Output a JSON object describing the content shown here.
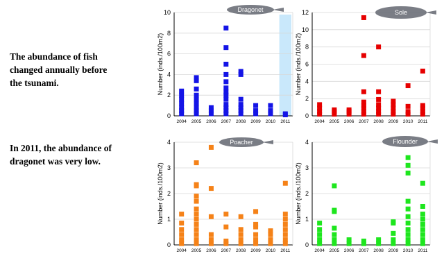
{
  "left_text": {
    "paragraph1": "The abundance of fish\nchanged annually before\nthe tsunami.",
    "paragraph2": "In 2011, the abundance of\ndragonet was very low."
  },
  "chart_data": [
    {
      "type": "scatter",
      "title": "Dragonet",
      "ylabel": "Number (inds./100m2)",
      "ylim": [
        0,
        10
      ],
      "yticks": [
        0,
        2,
        4,
        6,
        8,
        10
      ],
      "categories": [
        "2004",
        "2005",
        "2006",
        "2007",
        "2008",
        "2009",
        "2010",
        "2011"
      ],
      "color": "#1414e6",
      "highlight_category": "2011",
      "highlight_color": "#c9e8fb",
      "points": [
        [
          0,
          0.2
        ],
        [
          0,
          0.5
        ],
        [
          0,
          0.8
        ],
        [
          0,
          1.2
        ],
        [
          0,
          1.6
        ],
        [
          0,
          2.0
        ],
        [
          0,
          2.4
        ],
        [
          1,
          0.2
        ],
        [
          1,
          0.5
        ],
        [
          1,
          0.8
        ],
        [
          1,
          1.2
        ],
        [
          1,
          1.6
        ],
        [
          1,
          2.0
        ],
        [
          1,
          2.6
        ],
        [
          1,
          3.4
        ],
        [
          1,
          3.7
        ],
        [
          2,
          0.2
        ],
        [
          2,
          0.5
        ],
        [
          2,
          0.8
        ],
        [
          3,
          0.2
        ],
        [
          3,
          0.5
        ],
        [
          3,
          0.8
        ],
        [
          3,
          1.1
        ],
        [
          3,
          1.6
        ],
        [
          3,
          2.0
        ],
        [
          3,
          2.3
        ],
        [
          3,
          2.7
        ],
        [
          3,
          3.3
        ],
        [
          3,
          4.0
        ],
        [
          3,
          5.0
        ],
        [
          3,
          6.6
        ],
        [
          3,
          8.5
        ],
        [
          4,
          0.2
        ],
        [
          4,
          0.5
        ],
        [
          4,
          0.8
        ],
        [
          4,
          1.1
        ],
        [
          4,
          1.6
        ],
        [
          4,
          4.0
        ],
        [
          4,
          4.3
        ],
        [
          5,
          0.2
        ],
        [
          5,
          0.5
        ],
        [
          5,
          1.0
        ],
        [
          6,
          0.2
        ],
        [
          6,
          0.5
        ],
        [
          6,
          1.0
        ],
        [
          7,
          0.1
        ],
        [
          7,
          0.2
        ]
      ]
    },
    {
      "type": "scatter",
      "title": "Sole",
      "ylabel": "Number (inds./100m2)",
      "ylim": [
        0,
        12
      ],
      "yticks": [
        0,
        2,
        4,
        6,
        8,
        10,
        12
      ],
      "categories": [
        "2004",
        "2005",
        "2006",
        "2007",
        "2008",
        "2009",
        "2010",
        "2011"
      ],
      "color": "#e60000",
      "points": [
        [
          0,
          0.2
        ],
        [
          0,
          0.5
        ],
        [
          0,
          0.9
        ],
        [
          0,
          1.3
        ],
        [
          1,
          0.2
        ],
        [
          1,
          0.5
        ],
        [
          1,
          0.7
        ],
        [
          2,
          0.2
        ],
        [
          2,
          0.5
        ],
        [
          2,
          0.7
        ],
        [
          3,
          0.2
        ],
        [
          3,
          0.5
        ],
        [
          3,
          0.9
        ],
        [
          3,
          1.2
        ],
        [
          3,
          1.6
        ],
        [
          3,
          2.8
        ],
        [
          3,
          7.0
        ],
        [
          3,
          11.4
        ],
        [
          4,
          0.2
        ],
        [
          4,
          0.5
        ],
        [
          4,
          0.9
        ],
        [
          4,
          1.3
        ],
        [
          4,
          1.9
        ],
        [
          4,
          2.8
        ],
        [
          4,
          8.0
        ],
        [
          5,
          0.2
        ],
        [
          5,
          0.5
        ],
        [
          5,
          0.9
        ],
        [
          5,
          1.3
        ],
        [
          5,
          1.7
        ],
        [
          6,
          0.2
        ],
        [
          6,
          0.5
        ],
        [
          6,
          1.1
        ],
        [
          6,
          3.5
        ],
        [
          7,
          0.2
        ],
        [
          7,
          0.5
        ],
        [
          7,
          0.9
        ],
        [
          7,
          1.2
        ],
        [
          7,
          5.2
        ]
      ]
    },
    {
      "type": "scatter",
      "title": "Poacher",
      "ylabel": "Number (inds./100m2)",
      "ylim": [
        0,
        4
      ],
      "yticks": [
        0,
        1,
        2,
        3,
        4
      ],
      "categories": [
        "2004",
        "2005",
        "2006",
        "2007",
        "2008",
        "2009",
        "2010",
        "2011"
      ],
      "color": "#f58218",
      "points": [
        [
          0,
          0.05
        ],
        [
          0,
          0.2
        ],
        [
          0,
          0.4
        ],
        [
          0,
          0.6
        ],
        [
          0,
          0.85
        ],
        [
          0,
          1.2
        ],
        [
          1,
          0.05
        ],
        [
          1,
          0.2
        ],
        [
          1,
          0.4
        ],
        [
          1,
          0.6
        ],
        [
          1,
          0.8
        ],
        [
          1,
          1.0
        ],
        [
          1,
          1.2
        ],
        [
          1,
          1.4
        ],
        [
          1,
          1.7
        ],
        [
          1,
          1.9
        ],
        [
          1,
          2.3
        ],
        [
          1,
          2.35
        ],
        [
          1,
          3.2
        ],
        [
          2,
          0.05
        ],
        [
          2,
          0.2
        ],
        [
          2,
          0.4
        ],
        [
          2,
          1.1
        ],
        [
          2,
          2.2
        ],
        [
          2,
          3.8
        ],
        [
          3,
          0.05
        ],
        [
          3,
          0.15
        ],
        [
          3,
          0.7
        ],
        [
          3,
          1.2
        ],
        [
          4,
          0.05
        ],
        [
          4,
          0.2
        ],
        [
          4,
          0.4
        ],
        [
          4,
          0.6
        ],
        [
          4,
          1.1
        ],
        [
          5,
          0.05
        ],
        [
          5,
          0.2
        ],
        [
          5,
          0.4
        ],
        [
          5,
          0.7
        ],
        [
          5,
          0.8
        ],
        [
          5,
          1.3
        ],
        [
          6,
          0.05
        ],
        [
          6,
          0.2
        ],
        [
          6,
          0.4
        ],
        [
          6,
          0.55
        ],
        [
          7,
          0.05
        ],
        [
          7,
          0.2
        ],
        [
          7,
          0.4
        ],
        [
          7,
          0.6
        ],
        [
          7,
          0.8
        ],
        [
          7,
          1.0
        ],
        [
          7,
          1.2
        ],
        [
          7,
          2.4
        ]
      ]
    },
    {
      "type": "scatter",
      "title": "Flounder",
      "ylabel": "Number (inds./100m2)",
      "ylim": [
        0,
        4
      ],
      "yticks": [
        0,
        1,
        2,
        3,
        4
      ],
      "categories": [
        "2004",
        "2005",
        "2006",
        "2007",
        "2008",
        "2009",
        "2010",
        "2011"
      ],
      "color": "#1ee61e",
      "points": [
        [
          0,
          0.05
        ],
        [
          0,
          0.2
        ],
        [
          0,
          0.4
        ],
        [
          0,
          0.6
        ],
        [
          0,
          0.85
        ],
        [
          1,
          0.05
        ],
        [
          1,
          0.2
        ],
        [
          1,
          0.4
        ],
        [
          1,
          0.65
        ],
        [
          1,
          1.3
        ],
        [
          1,
          1.35
        ],
        [
          1,
          2.3
        ],
        [
          2,
          0.05
        ],
        [
          2,
          0.2
        ],
        [
          3,
          0.05
        ],
        [
          3,
          0.15
        ],
        [
          4,
          0.05
        ],
        [
          4,
          0.2
        ],
        [
          5,
          0.05
        ],
        [
          5,
          0.2
        ],
        [
          5,
          0.45
        ],
        [
          5,
          0.85
        ],
        [
          5,
          0.9
        ],
        [
          6,
          0.05
        ],
        [
          6,
          0.2
        ],
        [
          6,
          0.4
        ],
        [
          6,
          0.6
        ],
        [
          6,
          0.85
        ],
        [
          6,
          1.1
        ],
        [
          6,
          1.4
        ],
        [
          6,
          1.7
        ],
        [
          6,
          2.8
        ],
        [
          6,
          3.1
        ],
        [
          6,
          3.4
        ],
        [
          7,
          0.05
        ],
        [
          7,
          0.2
        ],
        [
          7,
          0.4
        ],
        [
          7,
          0.6
        ],
        [
          7,
          0.8
        ],
        [
          7,
          1.0
        ],
        [
          7,
          1.2
        ],
        [
          7,
          1.5
        ],
        [
          7,
          2.4
        ]
      ]
    }
  ]
}
